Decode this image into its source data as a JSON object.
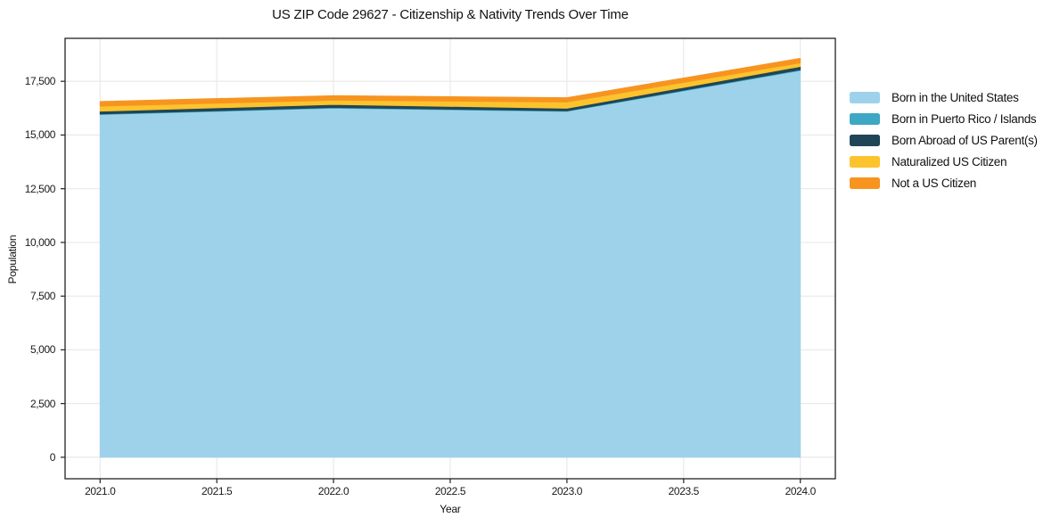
{
  "chart_data": {
    "type": "area",
    "stacked": true,
    "title": "US ZIP Code 29627 - Citizenship & Nativity Trends Over Time",
    "xlabel": "Year",
    "ylabel": "Population",
    "x": [
      2021,
      2022,
      2023,
      2024
    ],
    "series": [
      {
        "name": "Born in the United States",
        "color": "#9ed2ea",
        "values": [
          15950,
          16250,
          16100,
          18000
        ]
      },
      {
        "name": "Born in Puerto Rico / Islands",
        "color": "#3da7c4",
        "values": [
          30,
          30,
          25,
          40
        ]
      },
      {
        "name": "Born Abroad of US Parent(s)",
        "color": "#1f4557",
        "values": [
          130,
          140,
          120,
          150
        ]
      },
      {
        "name": "Naturalized US Citizen",
        "color": "#fcc32d",
        "values": [
          230,
          200,
          290,
          170
        ]
      },
      {
        "name": "Not a US Citizen",
        "color": "#f79420",
        "values": [
          220,
          210,
          200,
          210
        ]
      }
    ],
    "xticks": [
      2021.0,
      2021.5,
      2022.0,
      2022.5,
      2023.0,
      2023.5,
      2024.0
    ],
    "xtick_labels": [
      "2021.0",
      "2021.5",
      "2022.0",
      "2022.5",
      "2023.0",
      "2023.5",
      "2024.0"
    ],
    "yticks": [
      0,
      2500,
      5000,
      7500,
      10000,
      12500,
      15000,
      17500
    ],
    "ytick_labels": [
      "0",
      "2,500",
      "5,000",
      "7,500",
      "10,000",
      "12,500",
      "15,000",
      "17,500"
    ],
    "xlim": [
      2020.85,
      2024.15
    ],
    "ylim": [
      -1000,
      19500
    ],
    "grid": true,
    "legend_position": "right-outside",
    "colors": {
      "grid": "#e9e9e9",
      "spine": "#222222",
      "background": "#ffffff"
    }
  }
}
